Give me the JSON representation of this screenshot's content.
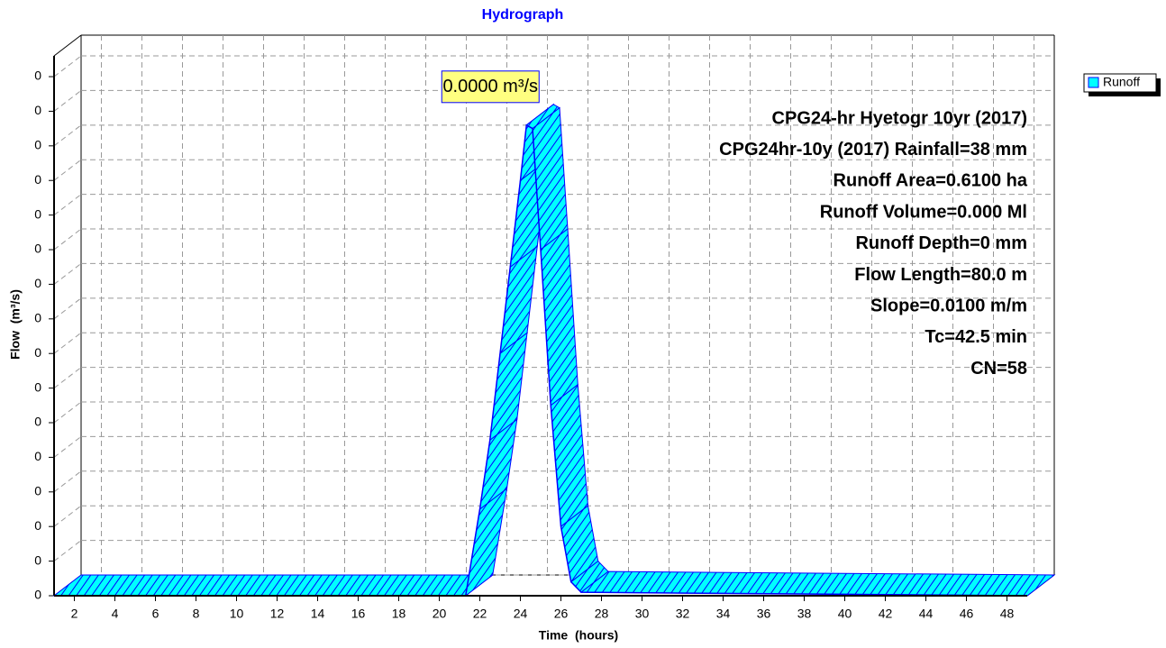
{
  "chart_data": {
    "type": "area",
    "title": "Hydrograph",
    "xlabel": "Time  (hours)",
    "ylabel": "Flow  (m³/s)",
    "x": [
      1,
      21.3,
      22,
      22.5,
      23,
      23.5,
      24,
      24.3,
      24.6,
      25,
      25.5,
      26,
      26.5,
      27,
      49
    ],
    "series": [
      {
        "name": "Runoff",
        "color": "#00ffff",
        "values": [
          0,
          0,
          2.5e-06,
          4.5e-06,
          7e-06,
          9.5e-06,
          1.2e-05,
          1.36e-05,
          1.35e-05,
          1e-05,
          5.5e-06,
          2e-06,
          4e-07,
          1e-07,
          0
        ]
      }
    ],
    "xlim": [
      1,
      49
    ],
    "xticks": [
      2,
      4,
      6,
      8,
      10,
      12,
      14,
      16,
      18,
      20,
      22,
      24,
      26,
      28,
      30,
      32,
      34,
      36,
      38,
      40,
      42,
      44,
      46,
      48
    ],
    "ylim": [
      0,
      1.56e-05
    ],
    "yticks": [
      0,
      {
        "value": 1e-06,
        "label": "0"
      },
      {
        "value": 2e-06,
        "label": "0"
      },
      {
        "value": 3e-06,
        "label": "0"
      },
      {
        "value": 4e-06,
        "label": "0"
      },
      {
        "value": 5e-06,
        "label": "0"
      },
      {
        "value": 6e-06,
        "label": "0"
      },
      {
        "value": 7e-06,
        "label": "0"
      },
      {
        "value": 8e-06,
        "label": "0"
      },
      {
        "value": 9e-06,
        "label": "0"
      },
      {
        "value": 1e-05,
        "label": "0"
      },
      {
        "value": 1.1e-05,
        "label": "0"
      },
      {
        "value": 1.2e-05,
        "label": "0"
      },
      {
        "value": 1.3e-05,
        "label": "0"
      },
      {
        "value": 1.4e-05,
        "label": "0"
      },
      {
        "value": 1.5e-05,
        "label": "0"
      }
    ],
    "grid": true,
    "legend": "upper right",
    "peak_label": "0.0000 m³/s",
    "annotations": [
      "CPG24-hr Hyetogr 10yr (2017)",
      "CPG24hr-10y (2017) Rainfall=38 mm",
      "Runoff Area=0.6100 ha",
      "Runoff Volume=0.000 Ml",
      "Runoff Depth=0 mm",
      "Flow Length=80.0 m",
      "Slope=0.0100 m/m",
      "Tc=42.5 min",
      "CN=58"
    ]
  }
}
